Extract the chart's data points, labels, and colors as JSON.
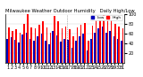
{
  "title": "Milwaukee Weather Outdoor Humidity   Daily High/Low",
  "high_color": "#ff0000",
  "low_color": "#0000bb",
  "background_color": "#ffffff",
  "plot_bg_color": "#ffffff",
  "ylim": [
    0,
    100
  ],
  "yticks": [
    20,
    40,
    60,
    80,
    100
  ],
  "days": [
    1,
    2,
    3,
    4,
    5,
    6,
    7,
    8,
    9,
    10,
    11,
    12,
    13,
    14,
    15,
    16,
    17,
    18,
    19,
    20,
    21,
    22,
    23,
    24,
    25,
    26,
    27,
    28,
    29,
    30,
    31
  ],
  "highs": [
    72,
    65,
    68,
    62,
    80,
    99,
    72,
    70,
    78,
    85,
    72,
    62,
    95,
    85,
    70,
    75,
    68,
    55,
    72,
    78,
    82,
    45,
    76,
    88,
    94,
    97,
    88,
    92,
    80,
    75,
    70
  ],
  "lows": [
    50,
    52,
    48,
    42,
    58,
    62,
    50,
    45,
    54,
    60,
    46,
    38,
    65,
    56,
    44,
    50,
    48,
    32,
    46,
    54,
    60,
    26,
    50,
    62,
    70,
    75,
    62,
    65,
    55,
    50,
    46
  ],
  "vline_pos": 15.5,
  "tick_fontsize": 3.5,
  "title_fontsize": 3.8,
  "legend_fontsize": 3.2,
  "bar_width": 0.38
}
